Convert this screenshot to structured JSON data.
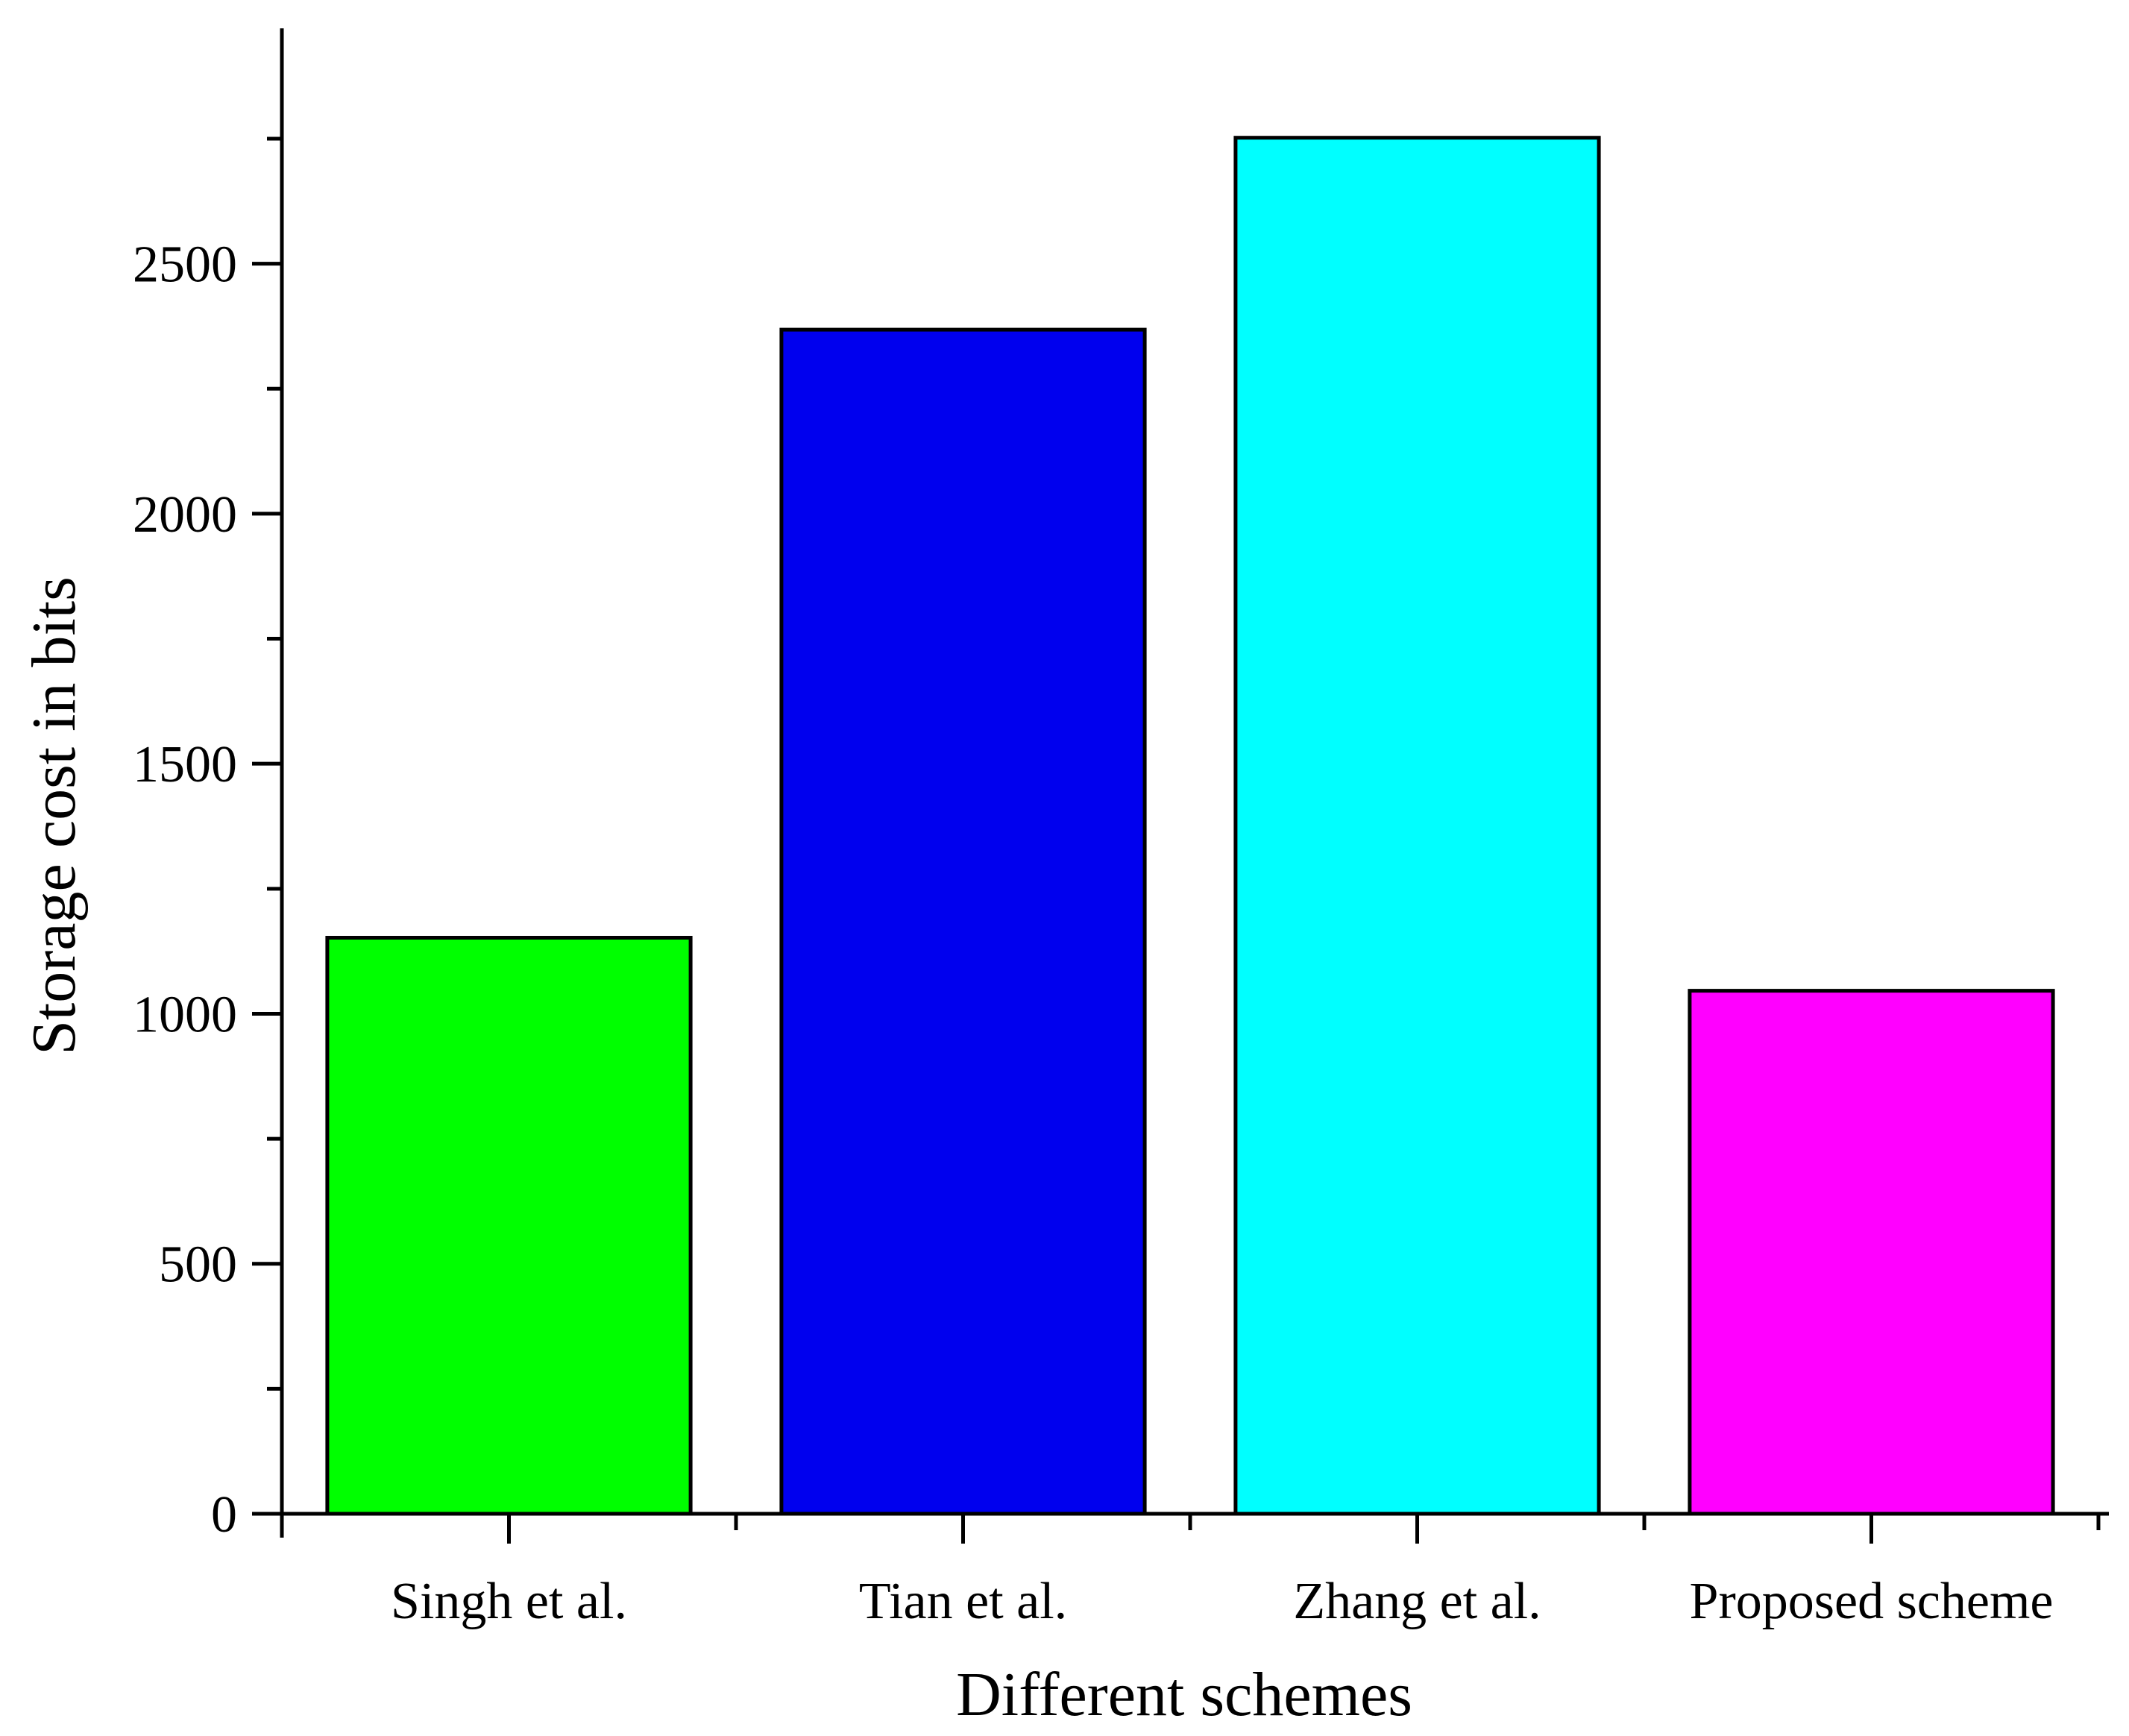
{
  "chart_data": {
    "type": "bar",
    "title": "",
    "xlabel": "Different schemes",
    "ylabel": "Storage cost in bits",
    "categories": [
      "Singh et al.",
      "Tian et al.",
      "Zhang et al.",
      "Proposed scheme"
    ],
    "values": [
      1152,
      2368,
      2752,
      1046
    ],
    "colors": [
      "#00ff00",
      "#0000ee",
      "#00ffff",
      "#ff00ff"
    ],
    "ylim": [
      0,
      2950
    ],
    "yticks": [
      0,
      500,
      1000,
      1500,
      2000,
      2500
    ],
    "yticks_minor": [
      250,
      750,
      1250,
      1750,
      2250,
      2750
    ],
    "grid": false,
    "legend": "none"
  }
}
